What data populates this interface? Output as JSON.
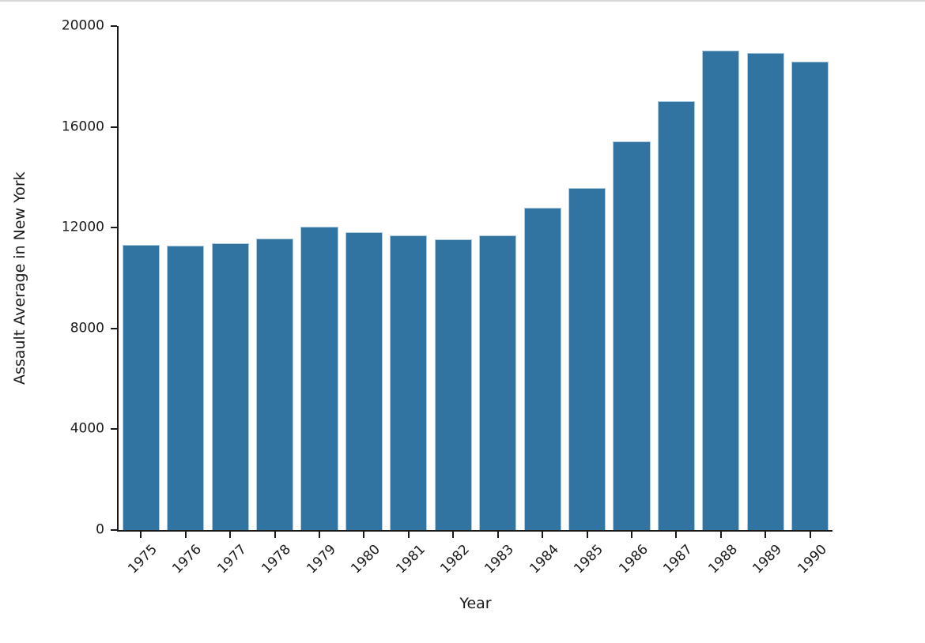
{
  "figure": {
    "background": "#ffffff",
    "top_divider_color": "#d8d8d8"
  },
  "chart_data": {
    "type": "bar",
    "title": "",
    "xlabel": "Year",
    "ylabel": "Assault Average in New York",
    "categories": [
      "1975",
      "1976",
      "1977",
      "1978",
      "1979",
      "1980",
      "1981",
      "1982",
      "1983",
      "1984",
      "1985",
      "1986",
      "1987",
      "1988",
      "1989",
      "1990"
    ],
    "values": [
      11300,
      11250,
      11350,
      11550,
      12000,
      11800,
      11650,
      11500,
      11650,
      12750,
      13550,
      15400,
      17000,
      19000,
      18900,
      18550
    ],
    "ylim": [
      0,
      20000
    ],
    "yticks": [
      0,
      4000,
      8000,
      12000,
      16000,
      20000
    ],
    "xtick_rotation_deg": 45,
    "grid": false,
    "legend": null,
    "bar_color": "#3274a1",
    "bar_edge_color": "#aecadd",
    "axis_color": "#1a1a1a",
    "tick_label_color": "#1a1a1a"
  }
}
